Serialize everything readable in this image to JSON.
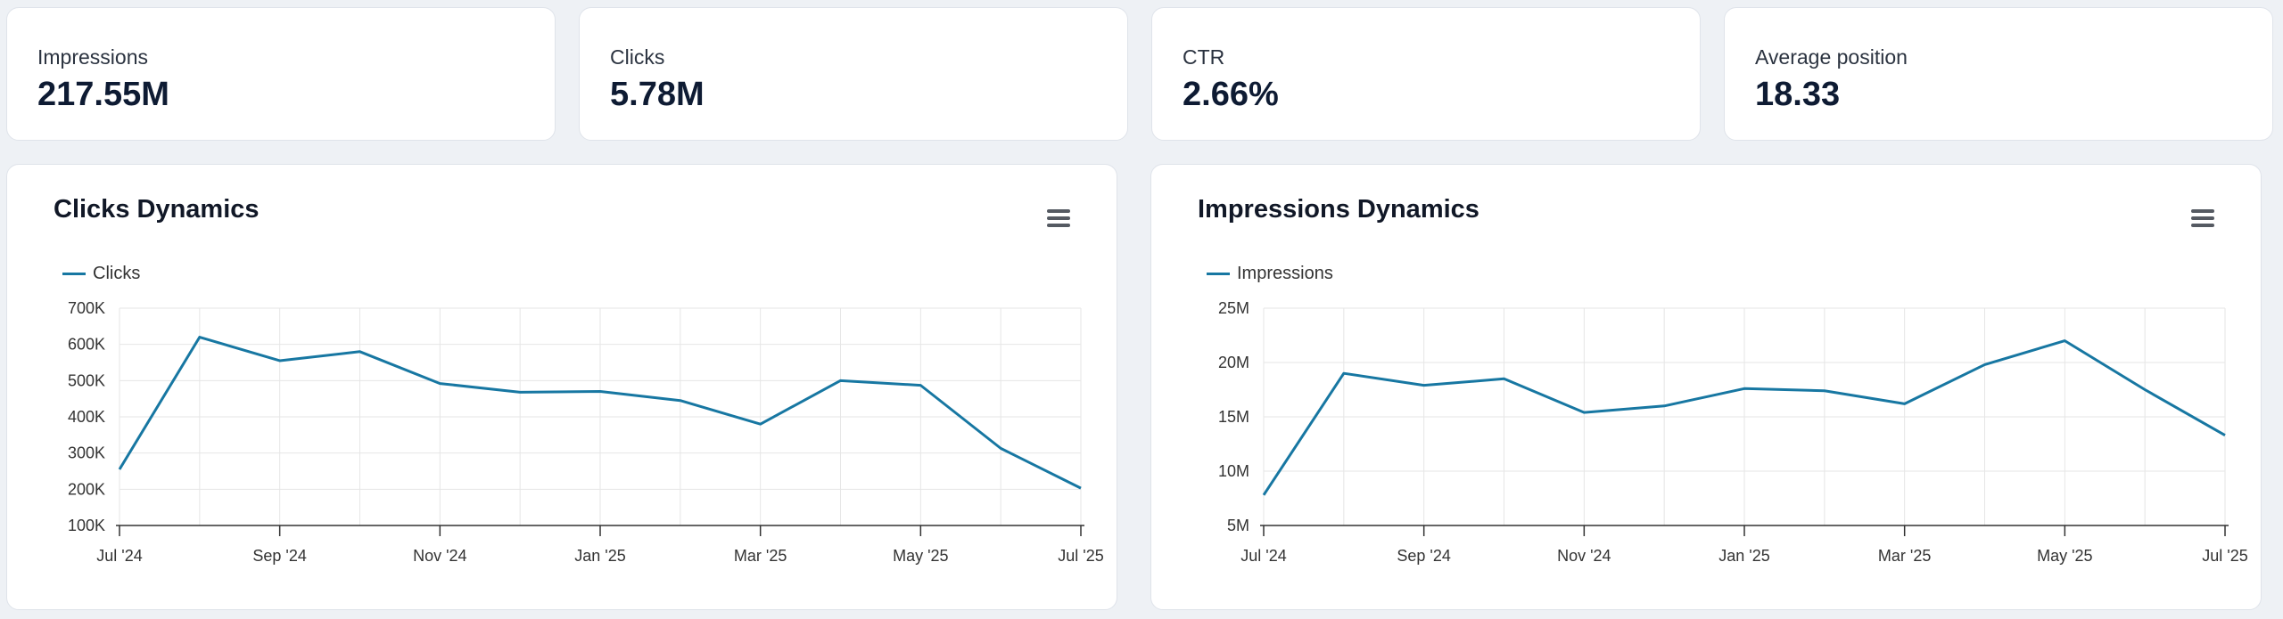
{
  "colors": {
    "series": "#1777a2",
    "grid": "#e6e6e6",
    "axis": "#333333"
  },
  "kpis": [
    {
      "label": "Impressions",
      "value": "217.55M"
    },
    {
      "label": "Clicks",
      "value": "5.78M"
    },
    {
      "label": "CTR",
      "value": "2.66%"
    },
    {
      "label": "Average position",
      "value": "18.33"
    }
  ],
  "charts": {
    "clicks": {
      "title": "Clicks Dynamics",
      "legend": "Clicks",
      "menu_icon": "hamburger-menu-icon"
    },
    "impressions": {
      "title": "Impressions Dynamics",
      "legend": "Impressions",
      "menu_icon": "hamburger-menu-icon"
    }
  },
  "chart_data": [
    {
      "type": "line",
      "title": "Clicks Dynamics",
      "x": [
        "Jul '24",
        "Aug '24",
        "Sep '24",
        "Oct '24",
        "Nov '24",
        "Dec '24",
        "Jan '25",
        "Feb '25",
        "Mar '25",
        "Apr '25",
        "May '25",
        "Jun '25",
        "Jul '25"
      ],
      "x_tick_labels": [
        "Jul '24",
        "Sep '24",
        "Nov '24",
        "Jan '25",
        "Mar '25",
        "May '25",
        "Jul '25"
      ],
      "series": [
        {
          "name": "Clicks",
          "values": [
            255000,
            620000,
            555000,
            580000,
            492000,
            468000,
            470000,
            445000,
            380000,
            500000,
            487000,
            313000,
            203000
          ]
        }
      ],
      "y_ticks": [
        100000,
        200000,
        300000,
        400000,
        500000,
        600000,
        700000
      ],
      "y_tick_labels": [
        "100K",
        "200K",
        "300K",
        "400K",
        "500K",
        "600K",
        "700K"
      ],
      "ylim": [
        100000,
        700000
      ],
      "grid": true,
      "legend": "top-left"
    },
    {
      "type": "line",
      "title": "Impressions Dynamics",
      "x": [
        "Jul '24",
        "Aug '24",
        "Sep '24",
        "Oct '24",
        "Nov '24",
        "Dec '24",
        "Jan '25",
        "Feb '25",
        "Mar '25",
        "Apr '25",
        "May '25",
        "Jun '25",
        "Jul '25"
      ],
      "x_tick_labels": [
        "Jul '24",
        "Sep '24",
        "Nov '24",
        "Jan '25",
        "Mar '25",
        "May '25",
        "Jul '25"
      ],
      "series": [
        {
          "name": "Impressions",
          "values": [
            7800000,
            19000000,
            17900000,
            18500000,
            15400000,
            16000000,
            17600000,
            17400000,
            16200000,
            19800000,
            22000000,
            17500000,
            13300000
          ]
        }
      ],
      "y_ticks": [
        5000000,
        10000000,
        15000000,
        20000000,
        25000000
      ],
      "y_tick_labels": [
        "5M",
        "10M",
        "15M",
        "20M",
        "25M"
      ],
      "ylim": [
        5000000,
        25000000
      ],
      "grid": true,
      "legend": "top-left"
    }
  ]
}
